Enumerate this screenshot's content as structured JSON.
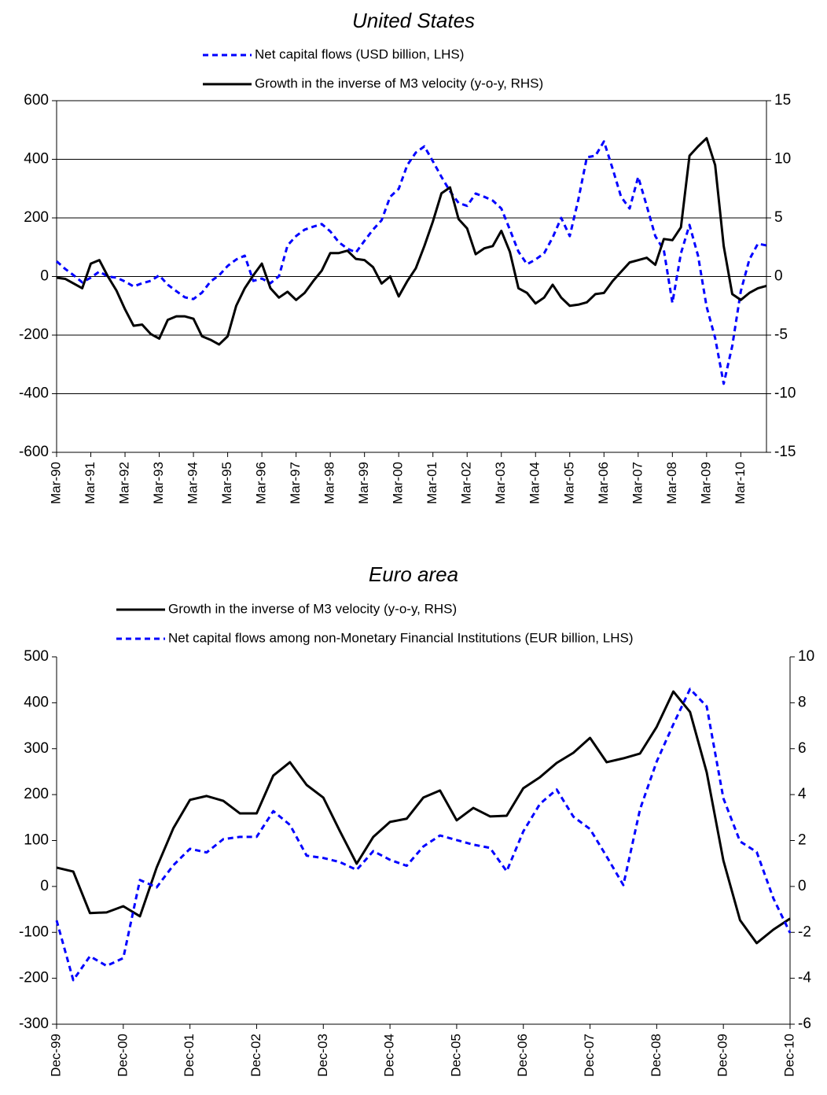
{
  "chart_data": [
    {
      "type": "line",
      "title": "United States",
      "categories": [
        "Mar-90",
        null,
        null,
        null,
        "Mar-91",
        null,
        null,
        null,
        "Mar-92",
        null,
        null,
        null,
        "Mar-93",
        null,
        null,
        null,
        "Mar-94",
        null,
        null,
        null,
        "Mar-95",
        null,
        null,
        null,
        "Mar-96",
        null,
        null,
        null,
        "Mar-97",
        null,
        null,
        null,
        "Mar-98",
        null,
        null,
        null,
        "Mar-99",
        null,
        null,
        null,
        "Mar-00",
        null,
        null,
        null,
        "Mar-01",
        null,
        null,
        null,
        "Mar-02",
        null,
        null,
        null,
        "Mar-03",
        null,
        null,
        null,
        "Mar-04",
        null,
        null,
        null,
        "Mar-05",
        null,
        null,
        null,
        "Mar-06",
        null,
        null,
        null,
        "Mar-07",
        null,
        null,
        null,
        "Mar-08",
        null,
        null,
        null,
        "Mar-09",
        null,
        null,
        null,
        "Mar-10",
        null,
        null,
        null
      ],
      "series": [
        {
          "name": "Net capital flows (USD billion, LHS)",
          "color": "#0000ff",
          "line_style": "dashed",
          "values": [
            52,
            26,
            4,
            -20,
            -4,
            17,
            0,
            -4,
            -17,
            -34,
            -23,
            -15,
            4,
            -28,
            -50,
            -71,
            -77,
            -55,
            -17,
            4,
            36,
            58,
            71,
            -15,
            -7,
            -23,
            1,
            106,
            138,
            160,
            170,
            179,
            154,
            117,
            95,
            82,
            122,
            160,
            192,
            272,
            299,
            380,
            423,
            444,
            393,
            340,
            291,
            251,
            241,
            283,
            272,
            259,
            232,
            160,
            85,
            42,
            58,
            79,
            133,
            200,
            138,
            262,
            407,
            412,
            461,
            369,
            272,
            232,
            340,
            241,
            138,
            90,
            -90,
            79,
            176,
            71,
            -103,
            -210,
            -366,
            -237,
            -50,
            58,
            112,
            106
          ]
        },
        {
          "name": "Growth in the inverse of M3 velocity (y-o-y, RHS)",
          "color": "#000000",
          "line_style": "solid",
          "axis": "y2",
          "values": [
            -0.1,
            -0.2,
            -0.6,
            -1.0,
            1.1,
            1.4,
            0,
            -1.2,
            -2.8,
            -4.2,
            -4.1,
            -4.9,
            -5.3,
            -3.7,
            -3.4,
            -3.4,
            -3.6,
            -5.1,
            -5.4,
            -5.8,
            -5.1,
            -2.5,
            -1.0,
            0.1,
            1.1,
            -1.0,
            -1.8,
            -1.3,
            -2.0,
            -1.4,
            -0.4,
            0.5,
            2.0,
            2.0,
            2.2,
            1.5,
            1.4,
            0.8,
            -0.6,
            0,
            -1.7,
            -0.4,
            0.7,
            2.6,
            4.7,
            7.1,
            7.6,
            4.9,
            4.1,
            1.9,
            2.4,
            2.6,
            3.9,
            2.1,
            -1.0,
            -1.4,
            -2.3,
            -1.8,
            -0.7,
            -1.8,
            -2.5,
            -2.4,
            -2.2,
            -1.5,
            -1.4,
            -0.4,
            0.4,
            1.2,
            1.4,
            1.6,
            1.0,
            3.2,
            3.1,
            4.2,
            10.3,
            11.1,
            11.8,
            9.5,
            2.6,
            -1.5,
            -2.0,
            -1.4,
            -1.0,
            -0.8
          ]
        }
      ],
      "ylim": [
        -600,
        600
      ],
      "yticks": [
        -600,
        -400,
        -200,
        0,
        200,
        400,
        600
      ],
      "y2lim": [
        -15,
        15
      ],
      "y2ticks": [
        -15,
        -10,
        -5,
        0,
        5,
        10,
        15
      ],
      "grid": true,
      "legend": "top"
    },
    {
      "type": "line",
      "title": "Euro area",
      "categories": [
        "Dec-99",
        null,
        null,
        null,
        "Dec-00",
        null,
        null,
        null,
        "Dec-01",
        null,
        null,
        null,
        "Dec-02",
        null,
        null,
        null,
        "Dec-03",
        null,
        null,
        null,
        "Dec-04",
        null,
        null,
        null,
        "Dec-05",
        null,
        null,
        null,
        "Dec-06",
        null,
        null,
        null,
        "Dec-07",
        null,
        null,
        null,
        "Dec-08",
        null,
        null,
        null,
        "Dec-09",
        null,
        null,
        null,
        "Dec-10"
      ],
      "series": [
        {
          "name": "Growth in the inverse of M3 velocity (y-o-y, RHS)",
          "color": "#000000",
          "line_style": "solid",
          "axis": "y2",
          "values": [
            0.82,
            0.65,
            -1.16,
            -1.13,
            -0.86,
            -1.3,
            0.82,
            2.53,
            3.77,
            3.94,
            3.73,
            3.18,
            3.18,
            4.83,
            5.41,
            4.42,
            3.87,
            2.4,
            0.99,
            2.16,
            2.81,
            2.95,
            3.87,
            4.18,
            2.88,
            3.42,
            3.05,
            3.08,
            4.28,
            4.76,
            5.38,
            5.82,
            6.47,
            5.41,
            5.58,
            5.79,
            6.95,
            8.49,
            7.6,
            4.97,
            1.13,
            -1.47,
            -2.47,
            -1.88,
            -1.4
          ]
        },
        {
          "name": "Net capital flows among non-Monetary Financial Institutions (EUR billion, LHS)",
          "color": "#0000ff",
          "line_style": "dashed",
          "values": [
            -74,
            -204,
            -152,
            -173,
            -156,
            14,
            -2,
            46,
            82,
            74,
            103,
            108,
            108,
            164,
            134,
            67,
            62,
            53,
            36,
            77,
            58,
            45,
            87,
            111,
            101,
            91,
            84,
            33,
            120,
            180,
            211,
            152,
            125,
            65,
            3,
            168,
            272,
            353,
            430,
            392,
            192,
            98,
            75,
            -26,
            -101
          ]
        }
      ],
      "ylim": [
        -300,
        500
      ],
      "yticks": [
        -300,
        -200,
        -100,
        0,
        100,
        200,
        300,
        400,
        500
      ],
      "y2lim": [
        -6,
        10
      ],
      "y2ticks": [
        -6,
        -4,
        -2,
        0,
        2,
        4,
        6,
        8,
        10
      ],
      "grid": false,
      "legend": "top"
    }
  ]
}
